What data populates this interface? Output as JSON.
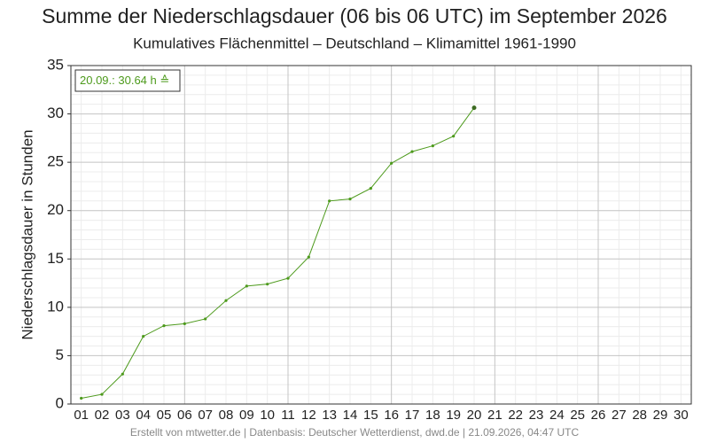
{
  "chart_data": {
    "type": "line",
    "title": "Summe der Niederschlagsdauer (06 bis 06 UTC) im September 2026",
    "subtitle": "Kumulatives Flächenmittel – Deutschland – Klimamittel 1961-1990",
    "y_label": "Niederschlagsdauer in Stunden",
    "annotation": "20.09.: 30.64 h ≙",
    "footer": "Erstellt von mtwetter.de | Datenbasis: Deutscher Wetterdienst, dwd.de | 21.09.2026, 04:47 UTC",
    "categories": [
      "01",
      "02",
      "03",
      "04",
      "05",
      "06",
      "07",
      "08",
      "09",
      "10",
      "11",
      "12",
      "13",
      "14",
      "15",
      "16",
      "17",
      "18",
      "19",
      "20",
      "21",
      "22",
      "23",
      "24",
      "25",
      "26",
      "27",
      "28",
      "29",
      "30"
    ],
    "series": [
      {
        "name": "Niederschlagsdauer",
        "color": "#4d9a1c",
        "values": [
          0.6,
          1.0,
          3.1,
          7.0,
          8.1,
          8.3,
          8.8,
          10.7,
          12.2,
          12.4,
          13.0,
          15.2,
          21.0,
          21.2,
          22.3,
          24.9,
          26.1,
          26.7,
          27.7,
          30.64,
          null,
          null,
          null,
          null,
          null,
          null,
          null,
          null,
          null,
          null
        ]
      }
    ],
    "ylim": [
      0,
      35
    ],
    "yticks": [
      0,
      5,
      10,
      15,
      20,
      25,
      30,
      35
    ],
    "grid": true
  }
}
